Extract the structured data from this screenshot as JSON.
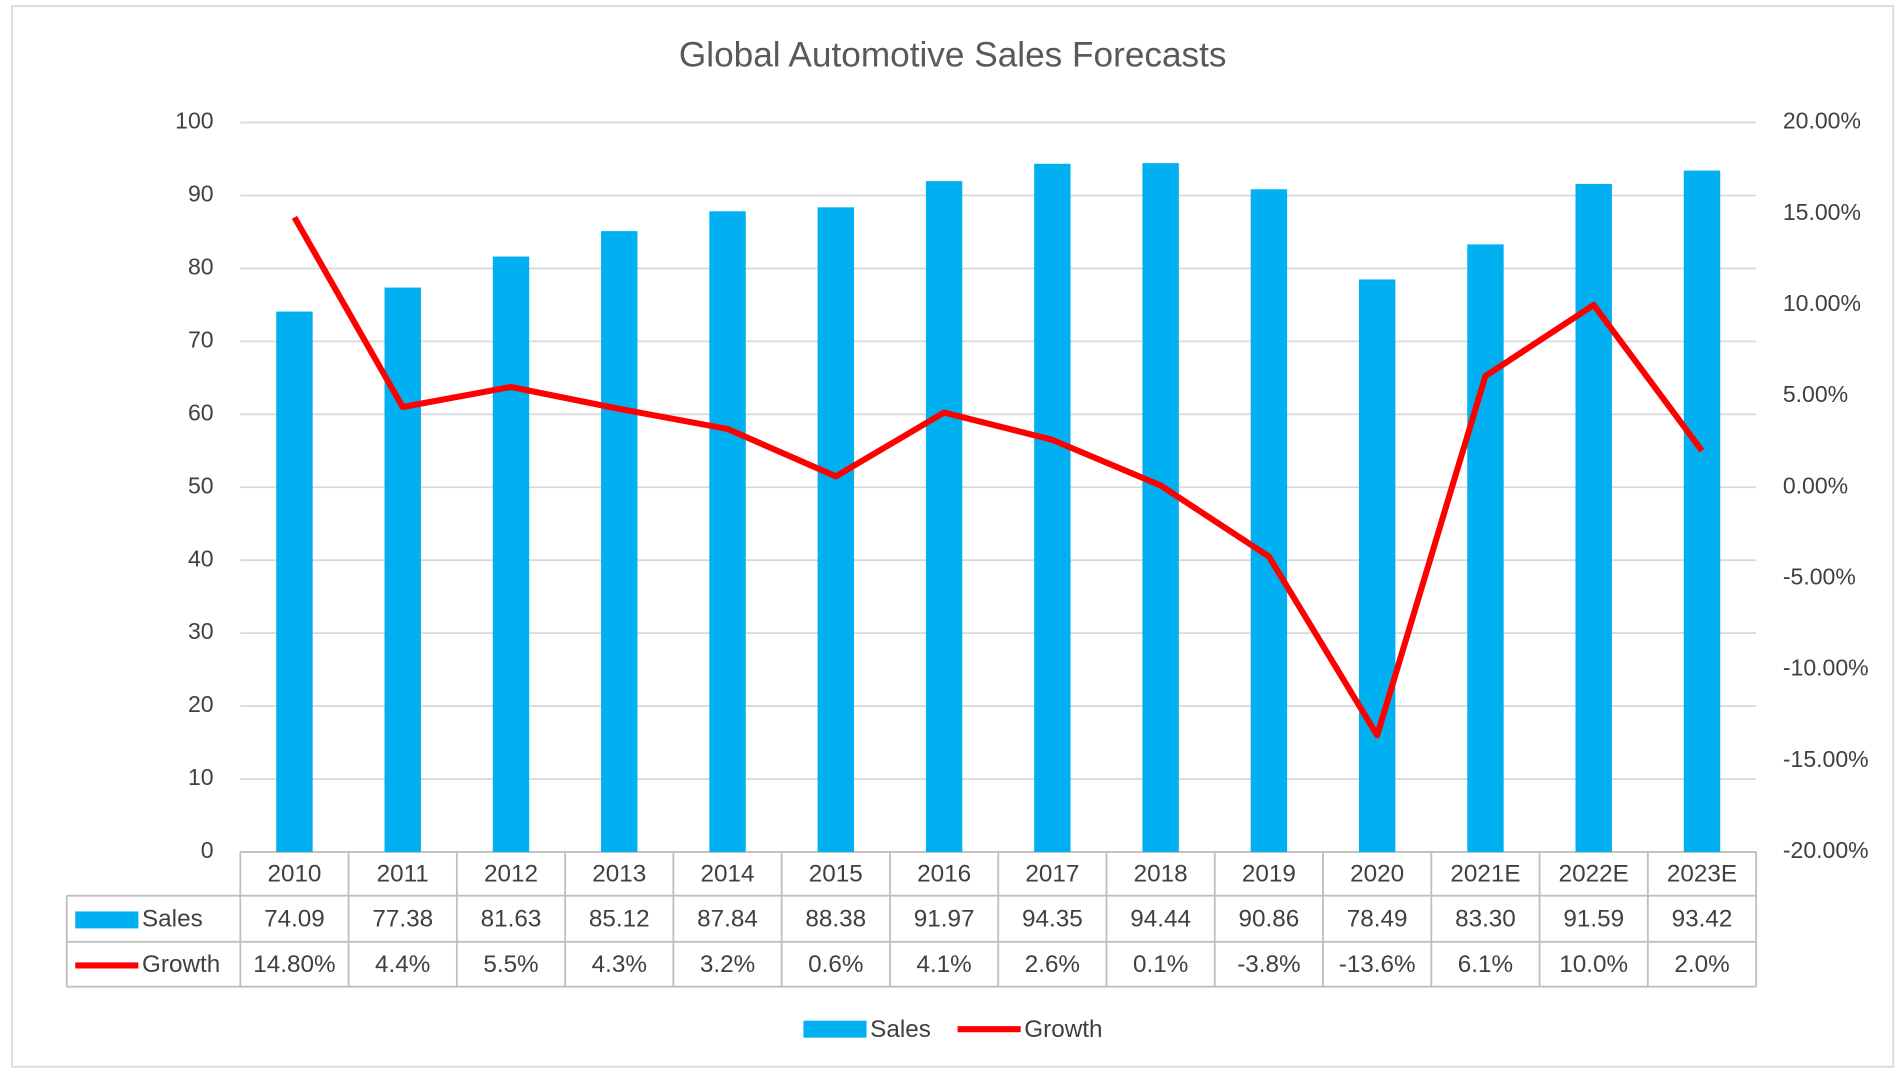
{
  "chart_data": {
    "type": "bar",
    "title": "Global Automotive Sales Forecasts",
    "categories": [
      "2010",
      "2011",
      "2012",
      "2013",
      "2014",
      "2015",
      "2016",
      "2017",
      "2018",
      "2019",
      "2020",
      "2021E",
      "2022E",
      "2023E"
    ],
    "series": [
      {
        "name": "Sales",
        "color": "#00b0f0",
        "type": "bar",
        "values": [
          74.09,
          77.38,
          81.63,
          85.12,
          87.84,
          88.38,
          91.97,
          94.35,
          94.44,
          90.86,
          78.49,
          83.3,
          91.59,
          93.42
        ],
        "value_labels": [
          "74.09",
          "77.38",
          "81.63",
          "85.12",
          "87.84",
          "88.38",
          "91.97",
          "94.35",
          "94.44",
          "90.86",
          "78.49",
          "83.30",
          "91.59",
          "93.42"
        ]
      },
      {
        "name": "Growth",
        "color": "#ff0000",
        "type": "line",
        "axis": "y2",
        "values": [
          14.8,
          4.4,
          5.5,
          4.3,
          3.2,
          0.6,
          4.1,
          2.6,
          0.1,
          -3.8,
          -13.6,
          6.1,
          10.0,
          2.0
        ],
        "value_labels": [
          "14.80%",
          "4.4%",
          "5.5%",
          "4.3%",
          "3.2%",
          "0.6%",
          "4.1%",
          "2.6%",
          "0.1%",
          "-3.8%",
          "-13.6%",
          "6.1%",
          "10.0%",
          "2.0%"
        ]
      }
    ],
    "ylim": [
      0,
      100
    ],
    "yticks": [
      0,
      10,
      20,
      30,
      40,
      50,
      60,
      70,
      80,
      90,
      100
    ],
    "y2lim": [
      -20,
      20
    ],
    "y2ticks": [
      {
        "value": -20,
        "label": "-20.00%"
      },
      {
        "value": -15,
        "label": "-15.00%"
      },
      {
        "value": -10,
        "label": "-10.00%"
      },
      {
        "value": -5,
        "label": "-5.00%"
      },
      {
        "value": 0,
        "label": "0.00%"
      },
      {
        "value": 5,
        "label": "5.00%"
      },
      {
        "value": 10,
        "label": "10.00%"
      },
      {
        "value": 15,
        "label": "15.00%"
      },
      {
        "value": 20,
        "label": "20.00%"
      }
    ],
    "grid": true,
    "legend": "bottom",
    "data_table": true
  }
}
